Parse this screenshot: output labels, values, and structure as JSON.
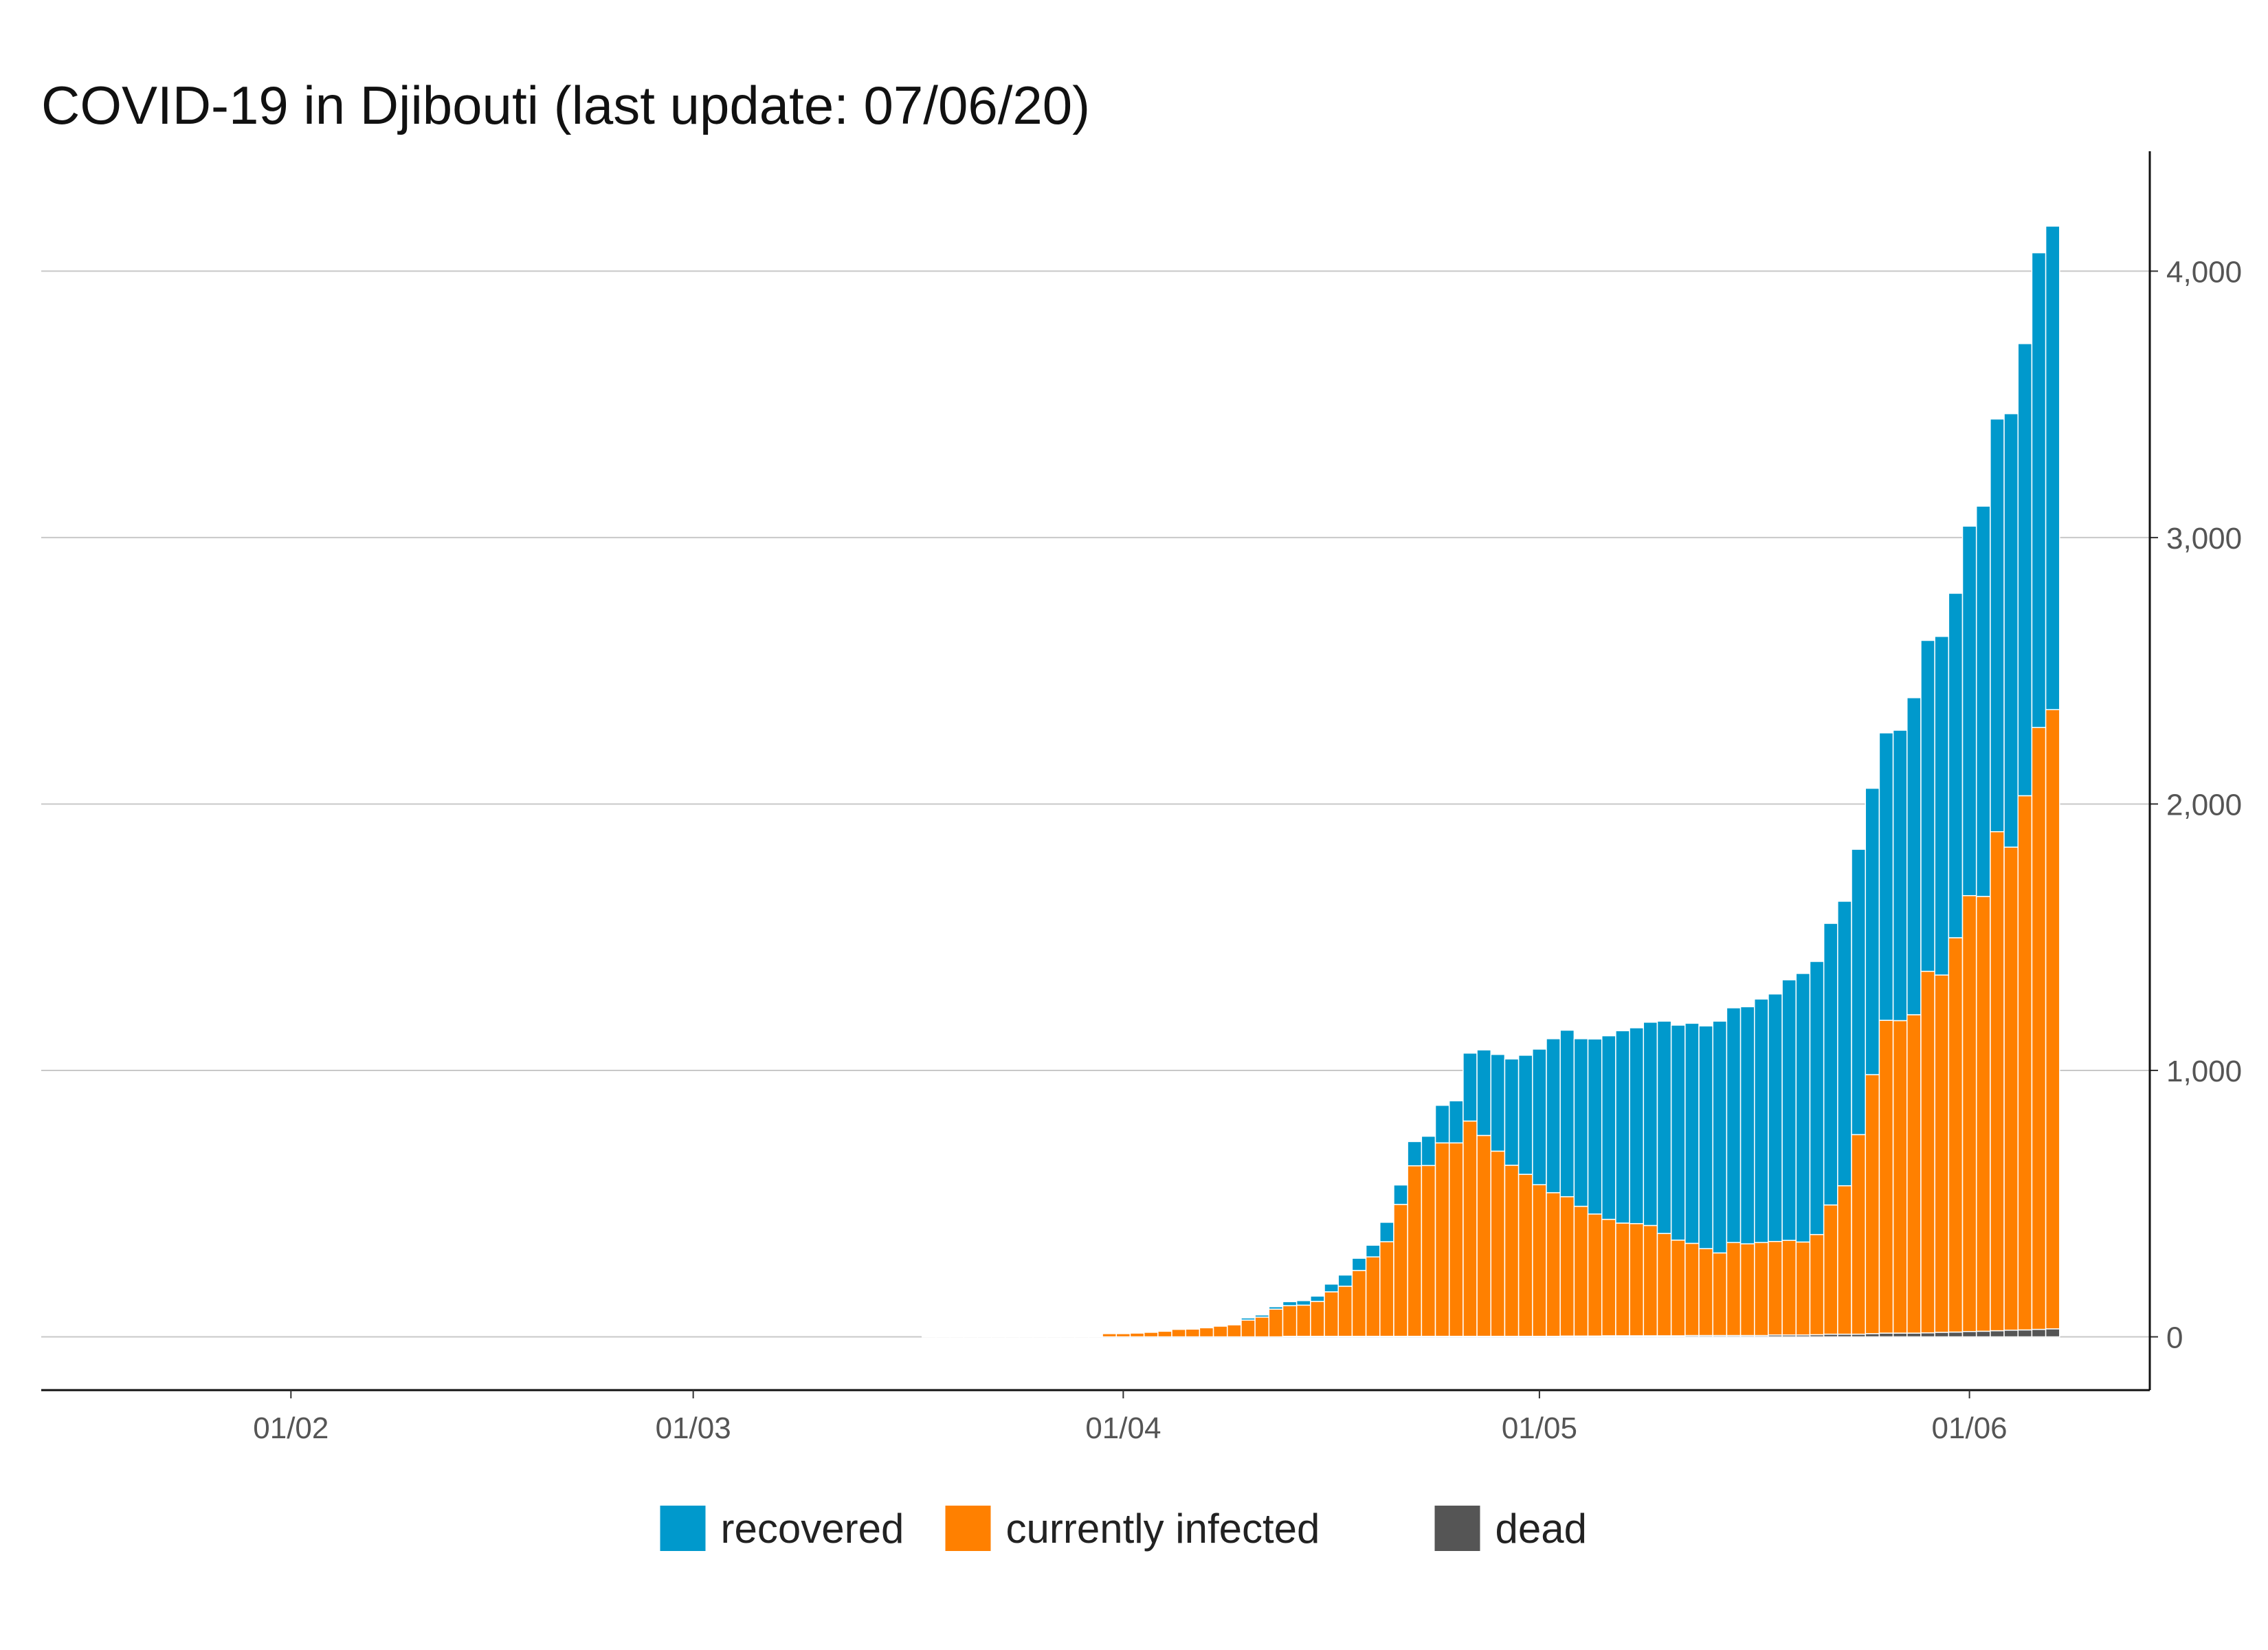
{
  "chart_data": {
    "type": "bar",
    "stacked": true,
    "title": "COVID-19 in Djibouti (last update: 07/06/20)",
    "xlabel": "",
    "ylabel": "",
    "x_axis_type": "date",
    "x_tick_labels": [
      "01/02",
      "01/03",
      "01/04",
      "01/05",
      "01/06"
    ],
    "x_tick_dates": [
      "2020-02-01",
      "2020-03-01",
      "2020-04-01",
      "2020-05-01",
      "2020-06-01"
    ],
    "xlim": [
      "2020-01-14",
      "2020-06-14"
    ],
    "y_ticks": [
      0,
      1000,
      2000,
      3000,
      4000
    ],
    "y_tick_labels": [
      "0",
      "1,000",
      "2,000",
      "3,000",
      "4,000"
    ],
    "y_axis_side": "right",
    "ylim": [
      -200,
      4450
    ],
    "grid": "horizontal",
    "legend_position": "bottom",
    "dates": [
      "2020-03-18",
      "2020-03-19",
      "2020-03-20",
      "2020-03-21",
      "2020-03-22",
      "2020-03-23",
      "2020-03-24",
      "2020-03-25",
      "2020-03-26",
      "2020-03-27",
      "2020-03-28",
      "2020-03-29",
      "2020-03-30",
      "2020-03-31",
      "2020-04-01",
      "2020-04-02",
      "2020-04-03",
      "2020-04-04",
      "2020-04-05",
      "2020-04-06",
      "2020-04-07",
      "2020-04-08",
      "2020-04-09",
      "2020-04-10",
      "2020-04-11",
      "2020-04-12",
      "2020-04-13",
      "2020-04-14",
      "2020-04-15",
      "2020-04-16",
      "2020-04-17",
      "2020-04-18",
      "2020-04-19",
      "2020-04-20",
      "2020-04-21",
      "2020-04-22",
      "2020-04-23",
      "2020-04-24",
      "2020-04-25",
      "2020-04-26",
      "2020-04-27",
      "2020-04-28",
      "2020-04-29",
      "2020-04-30",
      "2020-05-01",
      "2020-05-02",
      "2020-05-03",
      "2020-05-04",
      "2020-05-05",
      "2020-05-06",
      "2020-05-07",
      "2020-05-08",
      "2020-05-09",
      "2020-05-10",
      "2020-05-11",
      "2020-05-12",
      "2020-05-13",
      "2020-05-14",
      "2020-05-15",
      "2020-05-16",
      "2020-05-17",
      "2020-05-18",
      "2020-05-19",
      "2020-05-20",
      "2020-05-21",
      "2020-05-22",
      "2020-05-23",
      "2020-05-24",
      "2020-05-25",
      "2020-05-26",
      "2020-05-27",
      "2020-05-28",
      "2020-05-29",
      "2020-05-30",
      "2020-05-31",
      "2020-06-01",
      "2020-06-02",
      "2020-06-03",
      "2020-06-04",
      "2020-06-05",
      "2020-06-06",
      "2020-06-07"
    ],
    "series": [
      {
        "name": "recovered",
        "color": "#0099cc",
        "values": [
          0,
          0,
          0,
          0,
          0,
          0,
          0,
          0,
          0,
          0,
          0,
          0,
          0,
          0,
          0,
          0,
          0,
          0,
          0,
          0,
          0,
          0,
          0,
          8,
          8,
          9,
          15,
          17,
          20,
          29,
          42,
          46,
          44,
          73,
          73,
          91,
          110,
          141,
          158,
          255,
          321,
          363,
          399,
          447,
          509,
          578,
          625,
          629,
          657,
          689,
          722,
          735,
          763,
          797,
          807,
          826,
          836,
          870,
          881,
          890,
          914,
          929,
          978,
          1008,
          1025,
          1057,
          1068,
          1071,
          1075,
          1079,
          1090,
          1190,
          1242,
          1271,
          1293,
          1387,
          1465,
          1549,
          1627,
          1697,
          1782,
          1815
        ]
      },
      {
        "name": "currently infected",
        "color": "#ff8000",
        "values": [
          1,
          1,
          1,
          1,
          1,
          1,
          1,
          1,
          1,
          1,
          1,
          1,
          1,
          12,
          12,
          14,
          17,
          21,
          28,
          29,
          34,
          40,
          45,
          63,
          74,
          104,
          115,
          117,
          131,
          167,
          188,
          247,
          298,
          355,
          495,
          640,
          641,
          726,
          726,
          808,
          754,
          695,
          642,
          608,
          569,
          539,
          523,
          487,
          458,
          437,
          423,
          421,
          414,
          384,
          359,
          346,
          326,
          310,
          349,
          344,
          349,
          351,
          355,
          349,
          376,
          485,
          557,
          749,
          972,
          1174,
          1173,
          1195,
          1357,
          1341,
          1480,
          1636,
          1632,
          1873,
          1813,
          2005,
          2259,
          2324
        ]
      },
      {
        "name": "dead",
        "color": "#555555",
        "values": [
          0,
          0,
          0,
          0,
          0,
          0,
          0,
          0,
          0,
          0,
          0,
          0,
          0,
          0,
          0,
          0,
          0,
          0,
          0,
          0,
          0,
          0,
          0,
          0,
          0,
          0,
          2,
          2,
          2,
          2,
          2,
          2,
          2,
          2,
          2,
          2,
          2,
          2,
          2,
          2,
          2,
          2,
          2,
          2,
          2,
          2,
          3,
          3,
          3,
          4,
          4,
          4,
          4,
          4,
          4,
          5,
          5,
          5,
          5,
          5,
          5,
          7,
          7,
          7,
          8,
          10,
          10,
          10,
          12,
          14,
          14,
          14,
          15,
          17,
          18,
          20,
          21,
          23,
          25,
          26,
          28,
          30
        ]
      }
    ],
    "legend": [
      "recovered",
      "currently infected",
      "dead"
    ]
  }
}
